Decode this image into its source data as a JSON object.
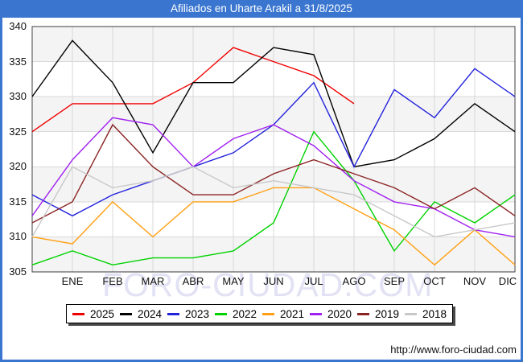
{
  "frame": {
    "title": "Afiliados en Uharte Arakil a 31/8/2025",
    "footer_url": "http://www.foro-ciudad.com",
    "watermark": "FORO-CIUDAD.COM",
    "accent_color": "#3a76d0"
  },
  "chart_data": {
    "type": "line",
    "title": "Afiliados en Uharte Arakil a 31/8/2025",
    "x_labels": [
      "ENE",
      "FEB",
      "MAR",
      "ABR",
      "MAY",
      "JUN",
      "JUL",
      "AGO",
      "SEP",
      "OCT",
      "NOV",
      "DIC"
    ],
    "x_note": "first point of each series (at the left plot edge, unlabeled) is December of the previous year",
    "y_ticks": [
      340,
      335,
      330,
      325,
      320,
      315,
      310,
      305
    ],
    "ylim": [
      305,
      340
    ],
    "grid": true,
    "legend_position": "bottom",
    "series": [
      {
        "name": "2025",
        "color": "#f00000",
        "values": [
          325,
          329,
          329,
          329,
          332,
          337,
          335,
          333,
          329
        ]
      },
      {
        "name": "2024",
        "color": "#000000",
        "values": [
          330,
          338,
          332,
          322,
          332,
          332,
          337,
          336,
          320,
          321,
          324,
          329,
          325
        ]
      },
      {
        "name": "2023",
        "color": "#2222dd",
        "values": [
          316,
          313,
          316,
          318,
          320,
          322,
          326,
          332,
          320,
          331,
          327,
          334,
          330
        ]
      },
      {
        "name": "2022",
        "color": "#00d200",
        "values": [
          306,
          308,
          306,
          307,
          307,
          308,
          312,
          325,
          318,
          308,
          315,
          312,
          316
        ]
      },
      {
        "name": "2021",
        "color": "#ffa014",
        "values": [
          310,
          309,
          315,
          310,
          315,
          315,
          317,
          317,
          314,
          311,
          306,
          311,
          306
        ]
      },
      {
        "name": "2020",
        "color": "#a020f0",
        "values": [
          313,
          321,
          327,
          326,
          320,
          324,
          326,
          323,
          318,
          315,
          314,
          311,
          310
        ]
      },
      {
        "name": "2019",
        "color": "#8b2323",
        "values": [
          312,
          315,
          326,
          320,
          316,
          316,
          319,
          321,
          319,
          317,
          314,
          317,
          313
        ]
      },
      {
        "name": "2018",
        "color": "#c8c8c8",
        "values": [
          310,
          320,
          317,
          318,
          320,
          317,
          318,
          317,
          316,
          313,
          310,
          311,
          312
        ]
      }
    ]
  }
}
